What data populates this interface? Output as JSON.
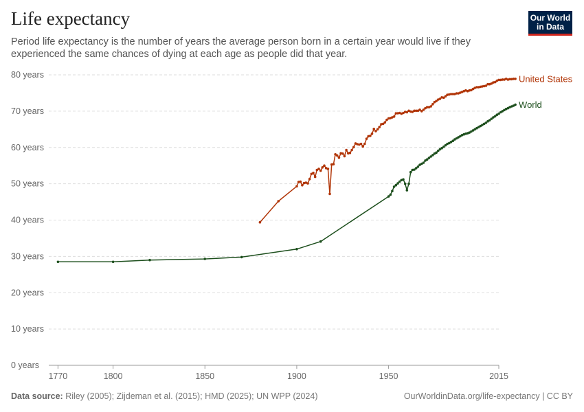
{
  "header": {
    "title": "Life expectancy",
    "subtitle": "Period life expectancy is the number of years the average person born in a certain year would live if they experienced the same chances of dying at each age as people did that year."
  },
  "logo": {
    "line1": "Our World",
    "line2": "in Data",
    "bg_color": "#002147",
    "accent_color": "#ce261e"
  },
  "footer": {
    "source_label": "Data source:",
    "source_text": "Riley (2005); Zijdeman et al. (2015); HMD (2025); UN WPP (2024)",
    "right_text": "OurWorldinData.org/life-expectancy | CC BY"
  },
  "chart_data": {
    "type": "line",
    "title": "Life expectancy",
    "xlabel": "",
    "ylabel": "",
    "xlim": [
      1765,
      2010
    ],
    "ylim": [
      0,
      80
    ],
    "x_ticks": [
      1770,
      1800,
      1850,
      1900,
      1950,
      2015
    ],
    "x_tick_labels": [
      "1770",
      "1800",
      "1850",
      "1900",
      "1950",
      "2015"
    ],
    "y_ticks": [
      0,
      10,
      20,
      30,
      40,
      50,
      60,
      70,
      80
    ],
    "y_tick_labels": [
      "0 years",
      "10 years",
      "20 years",
      "30 years",
      "40 years",
      "50 years",
      "60 years",
      "70 years",
      "80 years"
    ],
    "grid": "horizontal dashed",
    "series": [
      {
        "name": "United States",
        "color": "#b13507",
        "points": [
          [
            1880,
            39.4
          ],
          [
            1890,
            45.2
          ],
          [
            1900,
            49.3
          ],
          [
            1901,
            50.5
          ],
          [
            1902,
            50.6
          ],
          [
            1903,
            49.6
          ],
          [
            1904,
            50.2
          ],
          [
            1905,
            50.3
          ],
          [
            1906,
            50.1
          ],
          [
            1907,
            51.3
          ],
          [
            1908,
            52.7
          ],
          [
            1909,
            53.0
          ],
          [
            1910,
            51.9
          ],
          [
            1911,
            53.8
          ],
          [
            1912,
            54.1
          ],
          [
            1913,
            53.6
          ],
          [
            1914,
            54.5
          ],
          [
            1915,
            55.0
          ],
          [
            1916,
            54.3
          ],
          [
            1917,
            54.1
          ],
          [
            1918,
            47.2
          ],
          [
            1919,
            55.3
          ],
          [
            1920,
            55.4
          ],
          [
            1921,
            58.1
          ],
          [
            1922,
            57.8
          ],
          [
            1923,
            57.2
          ],
          [
            1924,
            58.4
          ],
          [
            1925,
            58.3
          ],
          [
            1926,
            57.6
          ],
          [
            1927,
            59.3
          ],
          [
            1928,
            58.4
          ],
          [
            1929,
            58.5
          ],
          [
            1930,
            59.3
          ],
          [
            1931,
            60.1
          ],
          [
            1932,
            61.1
          ],
          [
            1933,
            60.9
          ],
          [
            1934,
            60.8
          ],
          [
            1935,
            61.0
          ],
          [
            1936,
            60.3
          ],
          [
            1937,
            61.0
          ],
          [
            1938,
            62.4
          ],
          [
            1939,
            63.1
          ],
          [
            1940,
            63.2
          ],
          [
            1941,
            63.8
          ],
          [
            1942,
            65.1
          ],
          [
            1943,
            64.5
          ],
          [
            1944,
            65.0
          ],
          [
            1945,
            65.6
          ],
          [
            1946,
            66.4
          ],
          [
            1947,
            66.5
          ],
          [
            1948,
            66.9
          ],
          [
            1949,
            67.6
          ],
          [
            1950,
            68.0
          ],
          [
            1951,
            68.1
          ],
          [
            1952,
            68.3
          ],
          [
            1953,
            68.5
          ],
          [
            1954,
            69.4
          ],
          [
            1955,
            69.4
          ],
          [
            1956,
            69.5
          ],
          [
            1957,
            69.3
          ],
          [
            1958,
            69.5
          ],
          [
            1959,
            69.8
          ],
          [
            1960,
            69.7
          ],
          [
            1961,
            70.1
          ],
          [
            1962,
            69.9
          ],
          [
            1963,
            69.8
          ],
          [
            1964,
            70.1
          ],
          [
            1965,
            70.1
          ],
          [
            1966,
            70.1
          ],
          [
            1967,
            70.4
          ],
          [
            1968,
            70.0
          ],
          [
            1969,
            70.4
          ],
          [
            1970,
            70.8
          ],
          [
            1971,
            71.1
          ],
          [
            1972,
            71.1
          ],
          [
            1973,
            71.3
          ],
          [
            1974,
            71.9
          ],
          [
            1975,
            72.5
          ],
          [
            1976,
            72.8
          ],
          [
            1977,
            73.2
          ],
          [
            1978,
            73.4
          ],
          [
            1979,
            73.8
          ],
          [
            1980,
            73.7
          ],
          [
            1981,
            74.1
          ],
          [
            1982,
            74.5
          ],
          [
            1983,
            74.6
          ],
          [
            1984,
            74.7
          ],
          [
            1985,
            74.7
          ],
          [
            1986,
            74.7
          ],
          [
            1987,
            74.9
          ],
          [
            1988,
            74.9
          ],
          [
            1989,
            75.1
          ],
          [
            1990,
            75.3
          ],
          [
            1991,
            75.5
          ],
          [
            1992,
            75.7
          ],
          [
            1993,
            75.5
          ],
          [
            1994,
            75.7
          ],
          [
            1995,
            75.8
          ],
          [
            1996,
            76.1
          ],
          [
            1997,
            76.4
          ],
          [
            1998,
            76.6
          ],
          [
            1999,
            76.6
          ],
          [
            2000,
            76.7
          ],
          [
            2001,
            76.8
          ],
          [
            2002,
            76.9
          ],
          [
            2003,
            77.0
          ],
          [
            2004,
            77.4
          ],
          [
            2005,
            77.4
          ],
          [
            2006,
            77.6
          ],
          [
            2007,
            77.9
          ],
          [
            2008,
            78.0
          ],
          [
            2009,
            78.4
          ],
          [
            2010,
            78.6
          ],
          [
            2011,
            78.6
          ],
          [
            2012,
            78.7
          ],
          [
            2013,
            78.7
          ],
          [
            2014,
            78.9
          ],
          [
            2015,
            78.7
          ],
          [
            2016,
            78.8
          ],
          [
            2017,
            78.8
          ],
          [
            2018,
            78.9
          ],
          [
            2019,
            78.9
          ]
        ]
      },
      {
        "name": "World",
        "color": "#1d4f1d",
        "points": [
          [
            1770,
            28.5
          ],
          [
            1800,
            28.5
          ],
          [
            1820,
            29.0
          ],
          [
            1850,
            29.3
          ],
          [
            1870,
            29.8
          ],
          [
            1900,
            32.0
          ],
          [
            1913,
            34.1
          ],
          [
            1950,
            46.5
          ],
          [
            1951,
            47.0
          ],
          [
            1952,
            48.0
          ],
          [
            1953,
            49.2
          ],
          [
            1954,
            49.6
          ],
          [
            1955,
            50.1
          ],
          [
            1956,
            50.6
          ],
          [
            1957,
            51.0
          ],
          [
            1958,
            51.2
          ],
          [
            1959,
            50.0
          ],
          [
            1960,
            48.2
          ],
          [
            1961,
            50.0
          ],
          [
            1962,
            53.2
          ],
          [
            1963,
            53.8
          ],
          [
            1964,
            53.9
          ],
          [
            1965,
            54.3
          ],
          [
            1966,
            54.7
          ],
          [
            1967,
            55.2
          ],
          [
            1968,
            55.5
          ],
          [
            1969,
            55.8
          ],
          [
            1970,
            56.4
          ],
          [
            1971,
            56.7
          ],
          [
            1972,
            57.1
          ],
          [
            1973,
            57.5
          ],
          [
            1974,
            57.9
          ],
          [
            1975,
            58.3
          ],
          [
            1976,
            58.6
          ],
          [
            1977,
            59.1
          ],
          [
            1978,
            59.5
          ],
          [
            1979,
            59.8
          ],
          [
            1980,
            60.2
          ],
          [
            1981,
            60.6
          ],
          [
            1982,
            61.0
          ],
          [
            1983,
            61.2
          ],
          [
            1984,
            61.5
          ],
          [
            1985,
            61.8
          ],
          [
            1986,
            62.2
          ],
          [
            1987,
            62.5
          ],
          [
            1988,
            62.8
          ],
          [
            1989,
            63.1
          ],
          [
            1990,
            63.4
          ],
          [
            1991,
            63.6
          ],
          [
            1992,
            63.8
          ],
          [
            1993,
            63.9
          ],
          [
            1994,
            64.1
          ],
          [
            1995,
            64.4
          ],
          [
            1996,
            64.7
          ],
          [
            1997,
            65.0
          ],
          [
            1998,
            65.3
          ],
          [
            1999,
            65.6
          ],
          [
            2000,
            65.9
          ],
          [
            2001,
            66.2
          ],
          [
            2002,
            66.5
          ],
          [
            2003,
            66.8
          ],
          [
            2004,
            67.2
          ],
          [
            2005,
            67.5
          ],
          [
            2006,
            67.9
          ],
          [
            2007,
            68.3
          ],
          [
            2008,
            68.6
          ],
          [
            2009,
            69.0
          ],
          [
            2010,
            69.3
          ],
          [
            2011,
            69.7
          ],
          [
            2012,
            70.0
          ],
          [
            2013,
            70.3
          ],
          [
            2014,
            70.6
          ],
          [
            2015,
            70.8
          ],
          [
            2016,
            71.1
          ],
          [
            2017,
            71.3
          ],
          [
            2018,
            71.5
          ],
          [
            2019,
            71.8
          ]
        ]
      }
    ]
  }
}
